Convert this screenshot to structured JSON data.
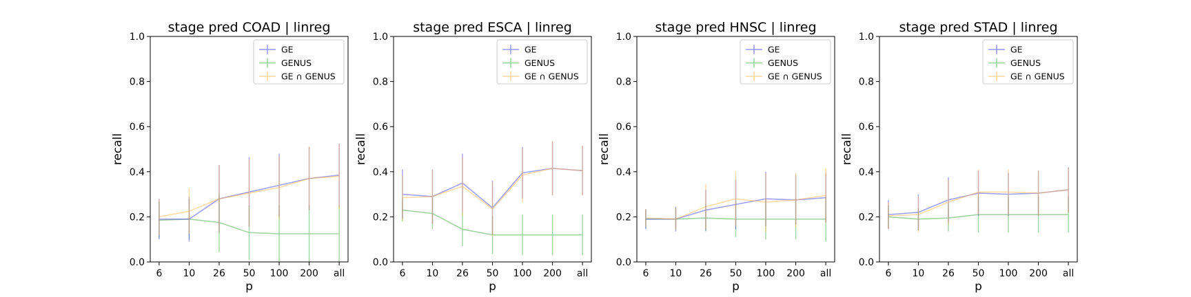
{
  "chart_data": [
    {
      "type": "line",
      "title": "stage pred COAD | linreg",
      "xlabel": "p",
      "ylabel": "recall",
      "categories": [
        "6",
        "10",
        "26",
        "50",
        "100",
        "200",
        "all"
      ],
      "ylim": [
        0,
        1
      ],
      "yticks": [
        "0.0",
        "0.2",
        "0.4",
        "0.6",
        "0.8",
        "1.0"
      ],
      "legend": "top-right",
      "series": [
        {
          "name": "GE",
          "color": "#4444ee",
          "values": [
            0.19,
            0.19,
            0.28,
            0.31,
            0.34,
            0.37,
            0.385
          ],
          "errors": [
            0.09,
            0.1,
            0.15,
            0.155,
            0.14,
            0.14,
            0.14
          ]
        },
        {
          "name": "GENUS",
          "color": "#44aa44",
          "values": [
            0.185,
            0.19,
            0.175,
            0.13,
            0.125,
            0.125,
            0.125
          ],
          "errors": [
            0.08,
            0.09,
            0.13,
            0.12,
            0.125,
            0.125,
            0.125
          ]
        },
        {
          "name": "GE ∩ GENUS",
          "color": "#ffb84d",
          "values": [
            0.2,
            0.225,
            0.28,
            0.305,
            0.33,
            0.37,
            0.38
          ],
          "errors": [
            0.08,
            0.1,
            0.15,
            0.15,
            0.14,
            0.14,
            0.145
          ]
        }
      ]
    },
    {
      "type": "line",
      "title": "stage pred ESCA | linreg",
      "xlabel": "p",
      "ylabel": "recall",
      "categories": [
        "6",
        "10",
        "26",
        "50",
        "100",
        "200",
        "all"
      ],
      "ylim": [
        0,
        1
      ],
      "yticks": [
        "0.0",
        "0.2",
        "0.4",
        "0.6",
        "0.8",
        "1.0"
      ],
      "legend": "top-right",
      "series": [
        {
          "name": "GE",
          "color": "#4444ee",
          "values": [
            0.3,
            0.29,
            0.35,
            0.24,
            0.395,
            0.415,
            0.405
          ],
          "errors": [
            0.11,
            0.12,
            0.13,
            0.12,
            0.115,
            0.12,
            0.11
          ]
        },
        {
          "name": "GENUS",
          "color": "#44aa44",
          "values": [
            0.23,
            0.215,
            0.145,
            0.12,
            0.12,
            0.12,
            0.12
          ],
          "errors": [
            0.05,
            0.07,
            0.075,
            0.085,
            0.09,
            0.09,
            0.09
          ]
        },
        {
          "name": "GE ∩ GENUS",
          "color": "#ffb84d",
          "values": [
            0.285,
            0.29,
            0.335,
            0.235,
            0.385,
            0.415,
            0.405
          ],
          "errors": [
            0.1,
            0.12,
            0.13,
            0.12,
            0.12,
            0.12,
            0.11
          ]
        }
      ]
    },
    {
      "type": "line",
      "title": "stage pred HNSC | linreg",
      "xlabel": "p",
      "ylabel": "recall",
      "categories": [
        "6",
        "10",
        "26",
        "50",
        "100",
        "200",
        "all"
      ],
      "ylim": [
        0,
        1
      ],
      "yticks": [
        "0.0",
        "0.2",
        "0.4",
        "0.6",
        "0.8",
        "1.0"
      ],
      "legend": "top-right",
      "series": [
        {
          "name": "GE",
          "color": "#4444ee",
          "values": [
            0.19,
            0.19,
            0.23,
            0.255,
            0.28,
            0.275,
            0.285
          ],
          "errors": [
            0.045,
            0.055,
            0.09,
            0.11,
            0.12,
            0.11,
            0.11
          ]
        },
        {
          "name": "GENUS",
          "color": "#44aa44",
          "values": [
            0.19,
            0.19,
            0.195,
            0.19,
            0.19,
            0.19,
            0.19
          ],
          "errors": [
            0.04,
            0.05,
            0.06,
            0.08,
            0.09,
            0.09,
            0.1
          ]
        },
        {
          "name": "GE ∩ GENUS",
          "color": "#ffb84d",
          "values": [
            0.195,
            0.19,
            0.245,
            0.28,
            0.265,
            0.275,
            0.295
          ],
          "errors": [
            0.04,
            0.05,
            0.1,
            0.12,
            0.13,
            0.12,
            0.12
          ]
        }
      ]
    },
    {
      "type": "line",
      "title": "stage pred STAD | linreg",
      "xlabel": "p",
      "ylabel": "recall",
      "categories": [
        "6",
        "10",
        "26",
        "50",
        "100",
        "200",
        "all"
      ],
      "ylim": [
        0,
        1
      ],
      "yticks": [
        "0.0",
        "0.2",
        "0.4",
        "0.6",
        "0.8",
        "1.0"
      ],
      "legend": "top-right",
      "series": [
        {
          "name": "GE",
          "color": "#4444ee",
          "values": [
            0.21,
            0.22,
            0.275,
            0.305,
            0.3,
            0.305,
            0.32
          ],
          "errors": [
            0.065,
            0.08,
            0.1,
            0.1,
            0.095,
            0.1,
            0.1
          ]
        },
        {
          "name": "GENUS",
          "color": "#44aa44",
          "values": [
            0.2,
            0.19,
            0.195,
            0.21,
            0.21,
            0.21,
            0.21
          ],
          "errors": [
            0.05,
            0.05,
            0.06,
            0.08,
            0.08,
            0.08,
            0.08
          ]
        },
        {
          "name": "GE ∩ GENUS",
          "color": "#ffb84d",
          "values": [
            0.205,
            0.21,
            0.265,
            0.31,
            0.31,
            0.305,
            0.32
          ],
          "errors": [
            0.06,
            0.08,
            0.1,
            0.1,
            0.1,
            0.1,
            0.1
          ]
        }
      ]
    }
  ]
}
